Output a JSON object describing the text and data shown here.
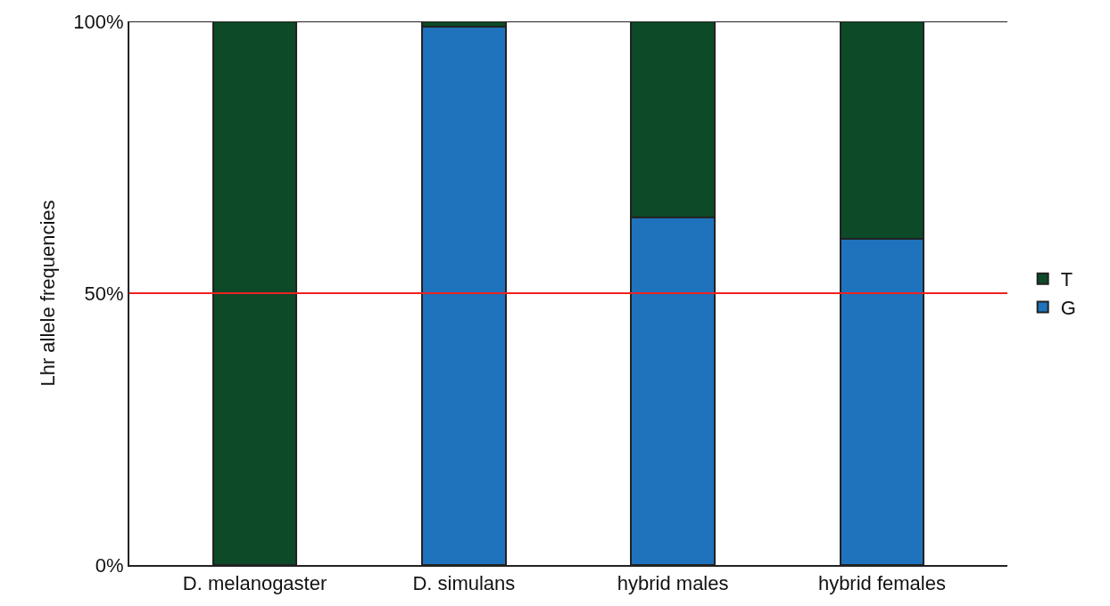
{
  "chart_data": {
    "type": "bar",
    "stacked": true,
    "ylabel": "Lhr allele frequencies",
    "categories": [
      "D. melanogaster",
      "D. simulans",
      "hybrid males",
      "hybrid females"
    ],
    "series": [
      {
        "name": "G",
        "color": "#1f73bd",
        "values": [
          0,
          99,
          64,
          60
        ]
      },
      {
        "name": "T",
        "color": "#0c4a28",
        "values": [
          100,
          1,
          36,
          40
        ]
      }
    ],
    "ylim": [
      0,
      100
    ],
    "yticks": [
      {
        "value": 0,
        "label": "0%"
      },
      {
        "value": 50,
        "label": "50%"
      },
      {
        "value": 100,
        "label": "100%"
      }
    ],
    "ref_lines": [
      {
        "axis": "y",
        "value": 50,
        "color": "#ee2222"
      }
    ],
    "legend": "right"
  }
}
